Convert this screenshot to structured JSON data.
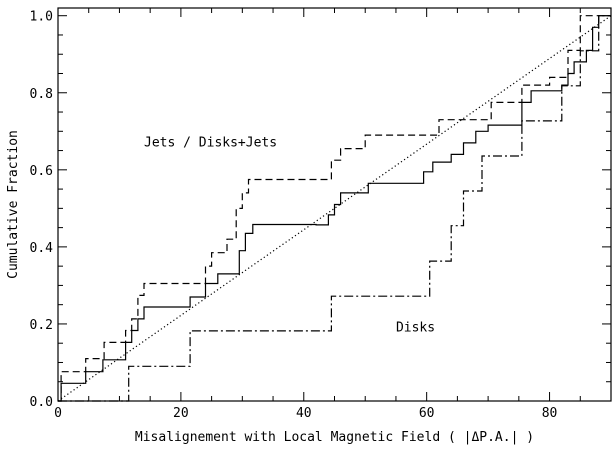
{
  "chart_data": {
    "type": "line",
    "title": "",
    "xlabel": "Misalignement with Local Magnetic Field ( |ΔP.A.| )",
    "ylabel": "Cumulative Fraction",
    "xlim": [
      0,
      90
    ],
    "ylim": [
      0,
      1.02
    ],
    "x_ticks": [
      0,
      20,
      40,
      60,
      80
    ],
    "y_ticks": [
      0.0,
      0.2,
      0.4,
      0.6,
      0.8,
      1.0
    ],
    "x_tick_labels": [
      "0",
      "20",
      "40",
      "60",
      "80"
    ],
    "y_tick_labels": [
      "0.0",
      "0.2",
      "0.4",
      "0.6",
      "0.8",
      "1.0"
    ],
    "grid": false,
    "annotations": [
      {
        "text": "Jets / Disks+Jets",
        "x": 14,
        "y": 0.66
      },
      {
        "text": "Disks",
        "x": 55,
        "y": 0.18
      }
    ],
    "series": [
      {
        "style": "solid",
        "points": [
          [
            0,
            0
          ],
          [
            0.5,
            0
          ],
          [
            0.5,
            0.046
          ],
          [
            4.5,
            0.046
          ],
          [
            4.5,
            0.076
          ],
          [
            7.3,
            0.076
          ],
          [
            7.3,
            0.107
          ],
          [
            11,
            0.107
          ],
          [
            11,
            0.152
          ],
          [
            12,
            0.152
          ],
          [
            12,
            0.183
          ],
          [
            13,
            0.183
          ],
          [
            13,
            0.213
          ],
          [
            14,
            0.213
          ],
          [
            14,
            0.244
          ],
          [
            21.5,
            0.244
          ],
          [
            21.5,
            0.27
          ],
          [
            24,
            0.27
          ],
          [
            24,
            0.305
          ],
          [
            26,
            0.305
          ],
          [
            26,
            0.33
          ],
          [
            29.5,
            0.33
          ],
          [
            29.5,
            0.39
          ],
          [
            30.5,
            0.39
          ],
          [
            30.5,
            0.435
          ],
          [
            31.7,
            0.435
          ],
          [
            31.7,
            0.458
          ],
          [
            42,
            0.458
          ],
          [
            42,
            0.457
          ],
          [
            44,
            0.457
          ],
          [
            44,
            0.483
          ],
          [
            45,
            0.483
          ],
          [
            45,
            0.51
          ],
          [
            46,
            0.51
          ],
          [
            46,
            0.54
          ],
          [
            50.5,
            0.54
          ],
          [
            50.5,
            0.565
          ],
          [
            59.5,
            0.565
          ],
          [
            59.5,
            0.595
          ],
          [
            61,
            0.595
          ],
          [
            61,
            0.62
          ],
          [
            64,
            0.62
          ],
          [
            64,
            0.64
          ],
          [
            66,
            0.64
          ],
          [
            66,
            0.67
          ],
          [
            68,
            0.67
          ],
          [
            68,
            0.7
          ],
          [
            70,
            0.7
          ],
          [
            70,
            0.716
          ],
          [
            75.5,
            0.716
          ],
          [
            75.5,
            0.775
          ],
          [
            77,
            0.775
          ],
          [
            77,
            0.805
          ],
          [
            82,
            0.805
          ],
          [
            82,
            0.82
          ],
          [
            83,
            0.82
          ],
          [
            83,
            0.85
          ],
          [
            84,
            0.85
          ],
          [
            84,
            0.88
          ],
          [
            86,
            0.88
          ],
          [
            86,
            0.91
          ],
          [
            87,
            0.91
          ],
          [
            87,
            0.97
          ],
          [
            88,
            0.97
          ],
          [
            88,
            1.0
          ],
          [
            90,
            1.0
          ]
        ]
      },
      {
        "style": "dashed",
        "points": [
          [
            0,
            0
          ],
          [
            0.5,
            0
          ],
          [
            0.5,
            0.076
          ],
          [
            4.5,
            0.076
          ],
          [
            4.5,
            0.11
          ],
          [
            7.5,
            0.11
          ],
          [
            7.5,
            0.152
          ],
          [
            11,
            0.152
          ],
          [
            11,
            0.183
          ],
          [
            12,
            0.183
          ],
          [
            12,
            0.213
          ],
          [
            13,
            0.213
          ],
          [
            13,
            0.274
          ],
          [
            14,
            0.274
          ],
          [
            14,
            0.305
          ],
          [
            24,
            0.305
          ],
          [
            24,
            0.35
          ],
          [
            25,
            0.35
          ],
          [
            25,
            0.385
          ],
          [
            27.5,
            0.385
          ],
          [
            27.5,
            0.42
          ],
          [
            29,
            0.42
          ],
          [
            29,
            0.5
          ],
          [
            30,
            0.5
          ],
          [
            30,
            0.54
          ],
          [
            31,
            0.54
          ],
          [
            31,
            0.575
          ],
          [
            44.5,
            0.575
          ],
          [
            44.5,
            0.625
          ],
          [
            46,
            0.625
          ],
          [
            46,
            0.655
          ],
          [
            50,
            0.655
          ],
          [
            50,
            0.69
          ],
          [
            62,
            0.69
          ],
          [
            62,
            0.73
          ],
          [
            70.5,
            0.73
          ],
          [
            70.5,
            0.775
          ],
          [
            75.5,
            0.775
          ],
          [
            75.5,
            0.82
          ],
          [
            77,
            0.82
          ],
          [
            77,
            0.82
          ],
          [
            80,
            0.82
          ],
          [
            80,
            0.84
          ],
          [
            83,
            0.84
          ],
          [
            83,
            0.91
          ],
          [
            85,
            0.91
          ],
          [
            85,
            1.0
          ],
          [
            90,
            1.0
          ]
        ]
      },
      {
        "style": "dash-dot",
        "points": [
          [
            0,
            0
          ],
          [
            11.5,
            0
          ],
          [
            11.5,
            0.09
          ],
          [
            21.5,
            0.09
          ],
          [
            21.5,
            0.182
          ],
          [
            44.5,
            0.182
          ],
          [
            44.5,
            0.272
          ],
          [
            60.5,
            0.272
          ],
          [
            60.5,
            0.363
          ],
          [
            64,
            0.363
          ],
          [
            64,
            0.455
          ],
          [
            66,
            0.455
          ],
          [
            66,
            0.545
          ],
          [
            69,
            0.545
          ],
          [
            69,
            0.636
          ],
          [
            75.5,
            0.636
          ],
          [
            75.5,
            0.727
          ],
          [
            82,
            0.727
          ],
          [
            82,
            0.818
          ],
          [
            85,
            0.818
          ],
          [
            85,
            0.909
          ],
          [
            88,
            0.909
          ],
          [
            88,
            1.0
          ],
          [
            90,
            1.0
          ]
        ]
      },
      {
        "style": "dotted",
        "points": [
          [
            0,
            0
          ],
          [
            90,
            1.0
          ]
        ]
      }
    ]
  }
}
